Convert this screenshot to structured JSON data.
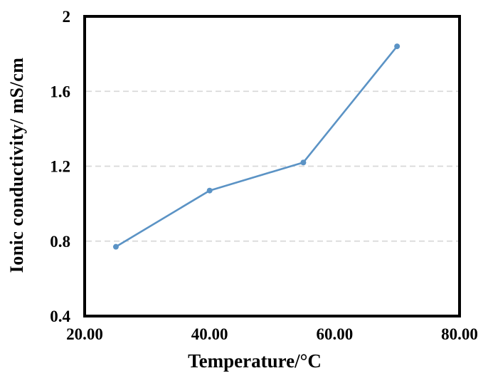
{
  "figure": {
    "background": "#ffffff",
    "title": ""
  },
  "chart_data": {
    "type": "line",
    "title": "",
    "xlabel": "Temperature/°C",
    "ylabel": "Ionic conductivity/ mS/cm",
    "xlim": [
      20,
      80
    ],
    "ylim": [
      0.4,
      2
    ],
    "grid": "horizontal-dashed",
    "legend": "none",
    "x_ticks": [
      {
        "value": 20,
        "label": "20.00"
      },
      {
        "value": 40,
        "label": "40.00"
      },
      {
        "value": 60,
        "label": "60.00"
      },
      {
        "value": 80,
        "label": "80.00"
      }
    ],
    "y_ticks": [
      {
        "value": 2,
        "label": "2",
        "gridline": false
      },
      {
        "value": 1.6,
        "label": "1.6",
        "gridline": true
      },
      {
        "value": 1.2,
        "label": "1.2",
        "gridline": true
      },
      {
        "value": 0.8,
        "label": "0.8",
        "gridline": true
      },
      {
        "value": 0.4,
        "label": "0.4",
        "gridline": false
      }
    ],
    "series": [
      {
        "name": "ionic-conductivity",
        "marker": "circle",
        "x": [
          25,
          40,
          55,
          70
        ],
        "y": [
          0.77,
          1.07,
          1.22,
          1.84
        ]
      }
    ],
    "colors": {
      "line": "#5b93c5",
      "marker": "#5b93c5",
      "gridline": "#d9d9d9",
      "axis": "#000000",
      "text": "#000000",
      "background": "#ffffff"
    }
  }
}
